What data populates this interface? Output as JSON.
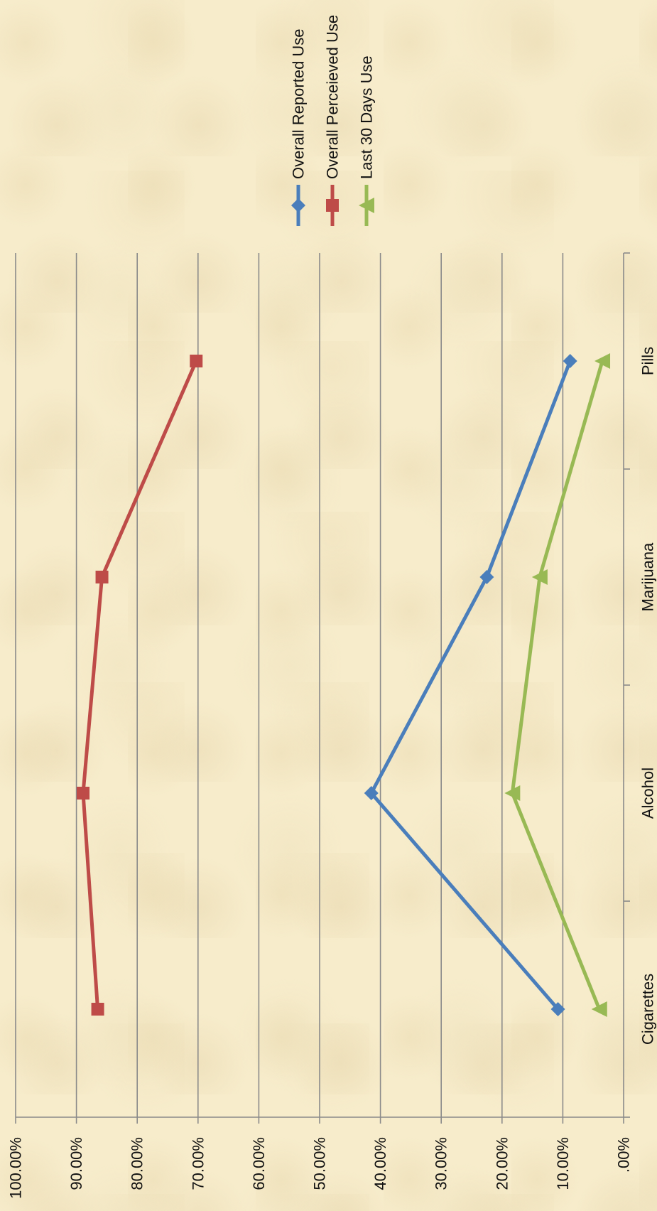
{
  "chart_data": {
    "type": "line",
    "orientation": "rotated-90-clockwise",
    "categories": [
      "Cigarettes",
      "Alcohol",
      "Marijuana",
      "Pills"
    ],
    "series": [
      {
        "name": "Overall Reported Use",
        "values": [
          10.8,
          41.5,
          22.5,
          8.8
        ],
        "color": "#4a7ebb",
        "marker": "diamond"
      },
      {
        "name": "Overall Perceieved Use",
        "values": [
          86.5,
          88.9,
          85.8,
          70.3
        ],
        "color": "#be4b48",
        "marker": "square"
      },
      {
        "name": "Last 30 Days Use",
        "values": [
          4.0,
          18.3,
          13.8,
          3.5
        ],
        "color": "#98b954",
        "marker": "triangle"
      }
    ],
    "ylim": [
      0,
      100
    ],
    "yticks": [
      ".00%",
      "10.00%",
      "20.00%",
      "30.00%",
      "40.00%",
      "50.00%",
      "60.00%",
      "70.00%",
      "80.00%",
      "90.00%",
      "100.00%"
    ],
    "grid": true,
    "legend_position": "top"
  }
}
